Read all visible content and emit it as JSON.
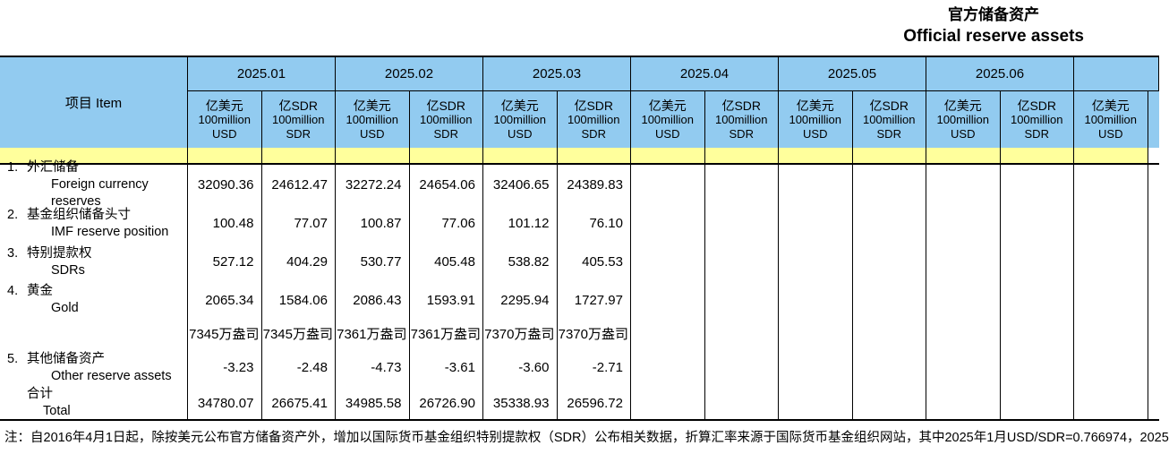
{
  "title": {
    "zh": "官方储备资产",
    "en": "Official reserve assets"
  },
  "table": {
    "item_header": "项目  Item",
    "months": [
      "2025.01",
      "2025.02",
      "2025.03",
      "2025.04",
      "2025.05",
      "2025.06"
    ],
    "unit_usd": {
      "zh": "亿美元",
      "en1": "100million",
      "en2": "USD"
    },
    "unit_sdr": {
      "zh": "亿SDR",
      "en1": "100million",
      "en2": "SDR"
    },
    "rows": [
      {
        "key": "fx",
        "no": "1.",
        "zh": "外汇储备",
        "en": "Foreign currency reserves",
        "values": [
          "32090.36",
          "24612.47",
          "32272.24",
          "24654.06",
          "32406.65",
          "24389.83",
          "",
          "",
          "",
          "",
          "",
          ""
        ]
      },
      {
        "key": "imf",
        "no": "2.",
        "zh": "基金组织储备头寸",
        "en": "IMF reserve position",
        "values": [
          "100.48",
          "77.07",
          "100.87",
          "77.06",
          "101.12",
          "76.10",
          "",
          "",
          "",
          "",
          "",
          ""
        ]
      },
      {
        "key": "sdr",
        "no": "3.",
        "zh": "特别提款权",
        "en": "SDRs",
        "values": [
          "527.12",
          "404.29",
          "530.77",
          "405.48",
          "538.82",
          "405.53",
          "",
          "",
          "",
          "",
          "",
          ""
        ]
      },
      {
        "key": "gold",
        "no": "4.",
        "zh": "黄金",
        "en": "Gold",
        "values": [
          "2065.34",
          "1584.06",
          "2086.43",
          "1593.91",
          "2295.94",
          "1727.97",
          "",
          "",
          "",
          "",
          "",
          ""
        ],
        "oz": [
          "7345万盎司",
          "7345万盎司",
          "7361万盎司",
          "7361万盎司",
          "7370万盎司",
          "7370万盎司",
          "",
          "",
          "",
          "",
          "",
          ""
        ]
      },
      {
        "key": "other",
        "no": "5.",
        "zh": "其他储备资产",
        "en": "Other reserve assets",
        "values": [
          "-3.23",
          "-2.48",
          "-4.73",
          "-3.61",
          "-3.60",
          "-2.71",
          "",
          "",
          "",
          "",
          "",
          ""
        ]
      },
      {
        "key": "total",
        "no": "",
        "zh": "合计",
        "en": "Total",
        "values": [
          "34780.07",
          "26675.41",
          "34985.58",
          "26726.90",
          "35338.93",
          "26596.72",
          "",
          "",
          "",
          "",
          "",
          ""
        ]
      }
    ]
  },
  "note": "注：自2016年4月1日起，除按美元公布官方储备资产外，增加以国际货币基金组织特别提款权（SDR）公布相关数据，折算汇率来源于国际货币基金组织网站，其中2025年1月USD/SDR=0.766974，2025",
  "colors": {
    "header_blue": "#92CBF0",
    "separator_yellow": "#FFFF9C",
    "border": "#000000"
  }
}
